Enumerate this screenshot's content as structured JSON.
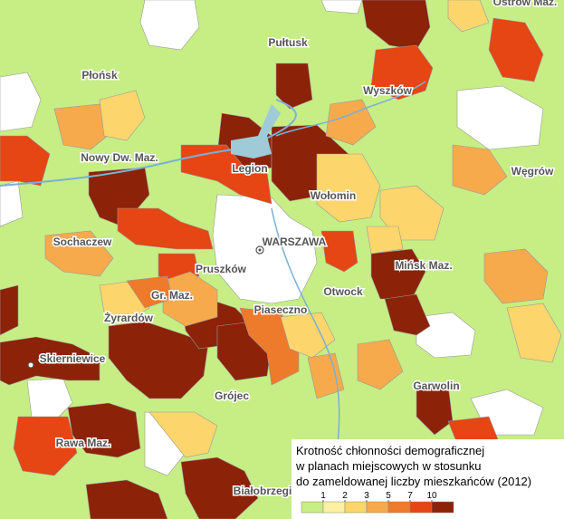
{
  "places": [
    {
      "label": "Ostrów Maz."
    },
    {
      "label": "Pułtusk"
    },
    {
      "label": "Płońsk"
    },
    {
      "label": "Wyszków"
    },
    {
      "label": "Nowy Dw. Maz."
    },
    {
      "label": "Legion"
    },
    {
      "label": "Wołomin"
    },
    {
      "label": "Węgrów"
    },
    {
      "label": "Sochaczew"
    },
    {
      "label": "WARSZAWA"
    },
    {
      "label": "Mińsk Maz."
    },
    {
      "label": "Pruszków"
    },
    {
      "label": "Otwock"
    },
    {
      "label": "Gr. Maz."
    },
    {
      "label": "Piaseczno"
    },
    {
      "label": "Żyrardów"
    },
    {
      "label": "Skierniewice"
    },
    {
      "label": "Garwolin"
    },
    {
      "label": "Grójec"
    },
    {
      "label": "Rawa Maz."
    },
    {
      "label": "Białobrzegi"
    }
  ],
  "legend": {
    "title": [
      "Krotność chłonności demograficznej",
      "w planach miejscowych w stosunku",
      "do zameldowanej liczby mieszkańców (2012)"
    ],
    "colors": [
      "#c6ee84",
      "#fdf0a2",
      "#fcd66c",
      "#f7aa4c",
      "#ee7a2c",
      "#e64514",
      "#8c2208"
    ],
    "ticks": [
      1,
      2,
      3,
      5,
      7,
      10
    ]
  }
}
